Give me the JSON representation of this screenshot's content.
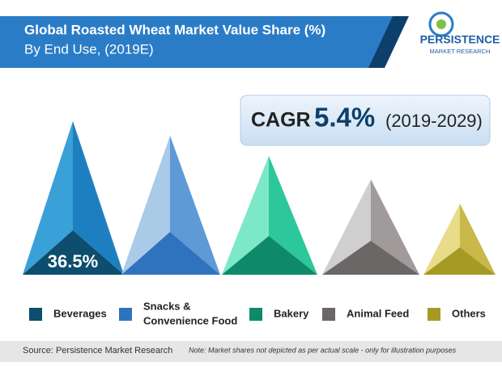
{
  "header": {
    "title": "Global Roasted Wheat Market Value Share (%)",
    "subtitle": "By End Use, (2019E)"
  },
  "logo": {
    "name": "PERSISTENCE",
    "tagline": "MARKET RESEARCH"
  },
  "cagr": {
    "label": "CAGR",
    "value": "5.4%",
    "period": "(2019-2029)"
  },
  "figure_label": "36.5%",
  "legend": {
    "items": [
      {
        "lines": [
          "Beverages"
        ],
        "color": "#0d4d6e"
      },
      {
        "lines": [
          "Snacks &",
          "Convenience Food"
        ],
        "color": "#2f73bf"
      },
      {
        "lines": [
          "Bakery"
        ],
        "color": "#0e8a6a"
      },
      {
        "lines": [
          "Animal Feed"
        ],
        "color": "#6b6767"
      },
      {
        "lines": [
          "Others"
        ],
        "color": "#a69a24"
      }
    ]
  },
  "footer": {
    "source": "Source: Persistence Market Research",
    "note": "Note: Market shares not depicted as per actual scale - only for illustration purposes"
  }
}
